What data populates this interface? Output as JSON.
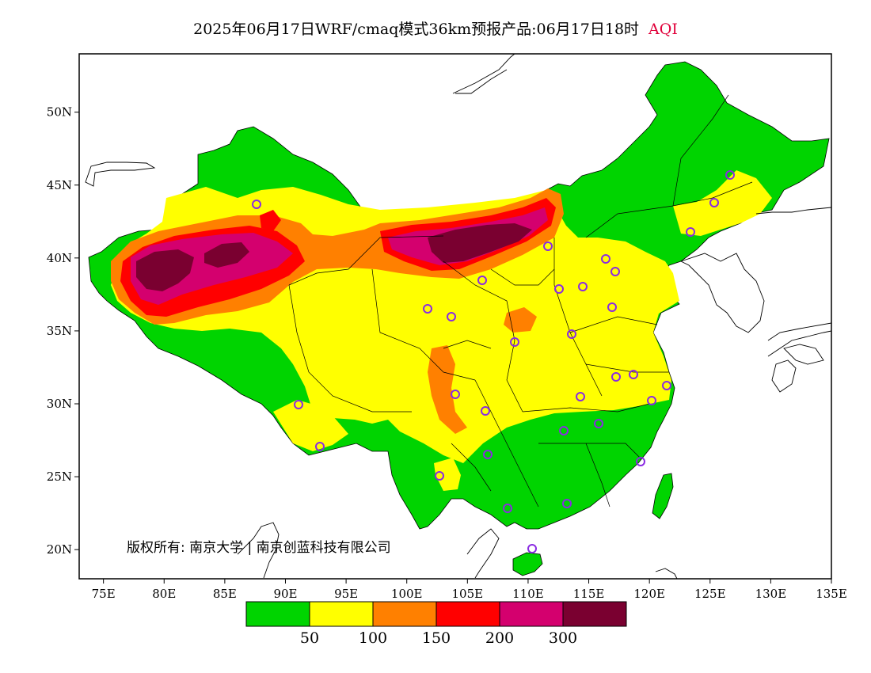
{
  "title": "2025年06月17日WRF/cmaq模式36km预报产品:06月17日18时",
  "variable": "AQI",
  "colors": {
    "title_variable": "#e0003a",
    "aqi_0_50": "#00d400",
    "aqi_50_100": "#ffff00",
    "aqi_100_150": "#ff8000",
    "aqi_150_200": "#ff0000",
    "aqi_200_300": "#d4006e",
    "aqi_300_plus": "#7a0030",
    "station_marker": "#8a2be2"
  },
  "axes": {
    "lon_ticks": [
      "75E",
      "80E",
      "85E",
      "90E",
      "95E",
      "100E",
      "105E",
      "110E",
      "115E",
      "120E",
      "125E",
      "130E",
      "135E"
    ],
    "lat_ticks": [
      "50N",
      "45N",
      "40N",
      "35N",
      "30N",
      "25N",
      "20N"
    ],
    "lon_range": [
      73,
      135
    ],
    "lat_range": [
      18,
      54
    ]
  },
  "copyright": "版权所有: 南京大学 | 南京创蓝科技有限公司",
  "legend": {
    "labels": [
      "50",
      "100",
      "150",
      "200",
      "300"
    ]
  }
}
